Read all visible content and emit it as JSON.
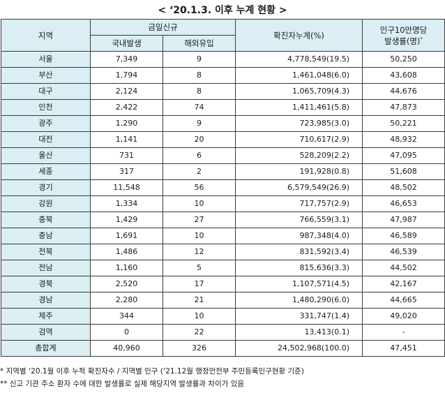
{
  "title": "< ‘20.1.3. 이후 누계 현황 >",
  "header": {
    "region": "지역",
    "new_cases": "금일신규",
    "domestic": "국내발생",
    "imported": "해외유입",
    "cumulative": "확진자누계(%)",
    "rate_line1": "인구10만명당",
    "rate_line2": "발생률(명)",
    "rate_sup": "*"
  },
  "rows": [
    {
      "region": "서울",
      "domestic": "7,349",
      "imported": "9",
      "cumulative": "4,778,549(19.5)",
      "rate": "50,250"
    },
    {
      "region": "부산",
      "domestic": "1,794",
      "imported": "8",
      "cumulative": "1,461,048(6.0)",
      "rate": "43,608"
    },
    {
      "region": "대구",
      "domestic": "2,124",
      "imported": "8",
      "cumulative": "1,065,709(4.3)",
      "rate": "44,676"
    },
    {
      "region": "인천",
      "domestic": "2,422",
      "imported": "74",
      "cumulative": "1,411,461(5.8)",
      "rate": "47,873"
    },
    {
      "region": "광주",
      "domestic": "1,290",
      "imported": "9",
      "cumulative": "723,985(3.0)",
      "rate": "50,221"
    },
    {
      "region": "대전",
      "domestic": "1,141",
      "imported": "20",
      "cumulative": "710,617(2.9)",
      "rate": "48,932"
    },
    {
      "region": "울산",
      "domestic": "731",
      "imported": "6",
      "cumulative": "528,209(2.2)",
      "rate": "47,095"
    },
    {
      "region": "세종",
      "domestic": "317",
      "imported": "2",
      "cumulative": "191,928(0.8)",
      "rate": "51,608"
    },
    {
      "region": "경기",
      "domestic": "11,548",
      "imported": "56",
      "cumulative": "6,579,549(26.9)",
      "rate": "48,502"
    },
    {
      "region": "강원",
      "domestic": "1,334",
      "imported": "10",
      "cumulative": "717,757(2.9)",
      "rate": "46,653"
    },
    {
      "region": "충북",
      "domestic": "1,429",
      "imported": "27",
      "cumulative": "766,559(3.1)",
      "rate": "47,987"
    },
    {
      "region": "충남",
      "domestic": "1,691",
      "imported": "10",
      "cumulative": "987,348(4.0)",
      "rate": "46,589"
    },
    {
      "region": "전북",
      "domestic": "1,486",
      "imported": "12",
      "cumulative": "831,592(3.4)",
      "rate": "46,539"
    },
    {
      "region": "전남",
      "domestic": "1,160",
      "imported": "5",
      "cumulative": "815,636(3.3)",
      "rate": "44,502"
    },
    {
      "region": "경북",
      "domestic": "2,520",
      "imported": "17",
      "cumulative": "1,107,571(4.5)",
      "rate": "42,167"
    },
    {
      "region": "경남",
      "domestic": "2,280",
      "imported": "21",
      "cumulative": "1,480,290(6.0)",
      "rate": "44,665"
    },
    {
      "region": "제주",
      "domestic": "344",
      "imported": "10",
      "cumulative": "331,747(1.4)",
      "rate": "49,020"
    },
    {
      "region": "검역",
      "domestic": "0",
      "imported": "22",
      "cumulative": "13,413(0.1)",
      "rate": "-"
    }
  ],
  "total": {
    "region": "총합계",
    "domestic": "40,960",
    "imported": "326",
    "cumulative": "24,502,968(100.0)",
    "rate": "47,451"
  },
  "notes": [
    "* 지역별 ‘20.1월 이후 누적 확진자수 / 지역별 인구 (‘21.12월 행정안전부 주민등록인구현황 기준)",
    "** 신고 기관 주소 환자 수에 대한 발생률로 실제 해당지역 발생률과 차이가 있음"
  ]
}
